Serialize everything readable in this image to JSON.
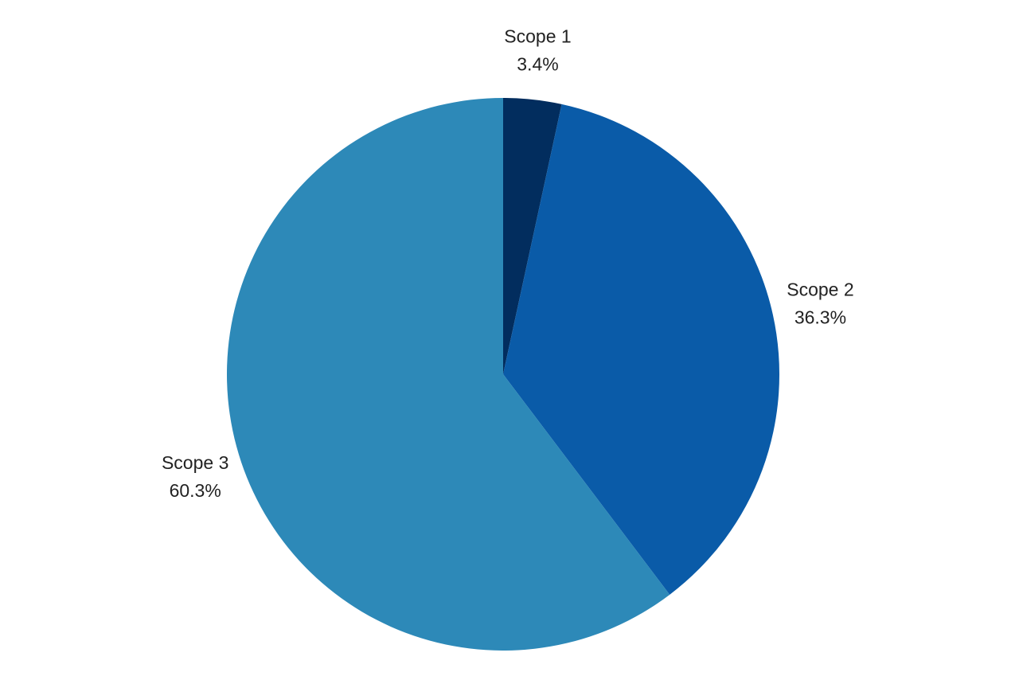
{
  "chart_data": {
    "type": "pie",
    "categories": [
      "Scope 1",
      "Scope 2",
      "Scope 3"
    ],
    "values": [
      3.4,
      36.3,
      60.3
    ],
    "value_labels": [
      "3.4%",
      "36.3%",
      "60.3%"
    ],
    "colors": [
      "#022d5e",
      "#0a5ba8",
      "#2d89b8"
    ]
  }
}
